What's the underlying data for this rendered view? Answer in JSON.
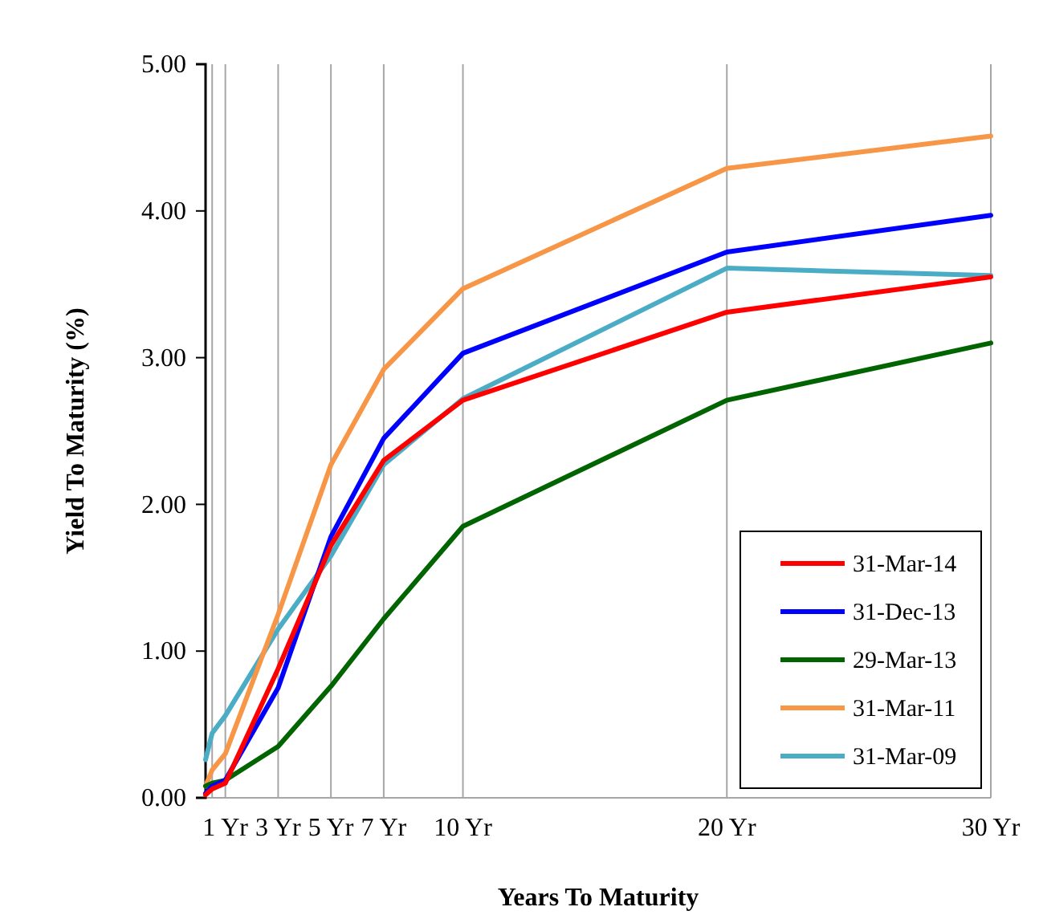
{
  "chart_data": {
    "type": "line",
    "xlabel": "Years To Maturity",
    "ylabel": "Yield To Maturity (%)",
    "x": [
      0.25,
      0.5,
      1,
      3,
      5,
      7,
      10,
      20,
      30
    ],
    "xlim": [
      0.25,
      30
    ],
    "xticks": [
      {
        "value": 1,
        "label": "1 Yr"
      },
      {
        "value": 3,
        "label": "3 Yr"
      },
      {
        "value": 5,
        "label": "5 Yr"
      },
      {
        "value": 7,
        "label": "7 Yr"
      },
      {
        "value": 10,
        "label": "10 Yr"
      },
      {
        "value": 20,
        "label": "20 Yr"
      },
      {
        "value": 30,
        "label": "30 Yr"
      }
    ],
    "ylim": [
      0,
      5
    ],
    "yticks": [
      {
        "value": 0,
        "label": "0.00"
      },
      {
        "value": 1,
        "label": "1.00"
      },
      {
        "value": 2,
        "label": "2.00"
      },
      {
        "value": 3,
        "label": "3.00"
      },
      {
        "value": 4,
        "label": "4.00"
      },
      {
        "value": 5,
        "label": "5.00"
      }
    ],
    "grid": "x",
    "legend": "bottom right",
    "marker": "none",
    "line_style": "solid",
    "series": [
      {
        "name": "31-Mar-14",
        "color": "#ff0000",
        "values": [
          0.02,
          0.06,
          0.1,
          0.88,
          1.72,
          2.3,
          2.71,
          3.31,
          3.55
        ]
      },
      {
        "name": "31-Dec-13",
        "color": "#0000ff",
        "values": [
          0.03,
          0.08,
          0.12,
          0.75,
          1.78,
          2.45,
          3.03,
          3.72,
          3.97
        ]
      },
      {
        "name": "29-Mar-13",
        "color": "#006400",
        "values": [
          0.08,
          0.1,
          0.12,
          0.35,
          0.76,
          1.22,
          1.85,
          2.71,
          3.1
        ]
      },
      {
        "name": "31-Mar-11",
        "color": "#f79646",
        "values": [
          0.08,
          0.19,
          0.3,
          1.25,
          2.27,
          2.92,
          3.47,
          4.29,
          4.51
        ]
      },
      {
        "name": "31-Mar-09",
        "color": "#4bacc6",
        "values": [
          0.26,
          0.44,
          0.56,
          1.15,
          1.65,
          2.27,
          2.72,
          3.61,
          3.56
        ]
      }
    ]
  }
}
